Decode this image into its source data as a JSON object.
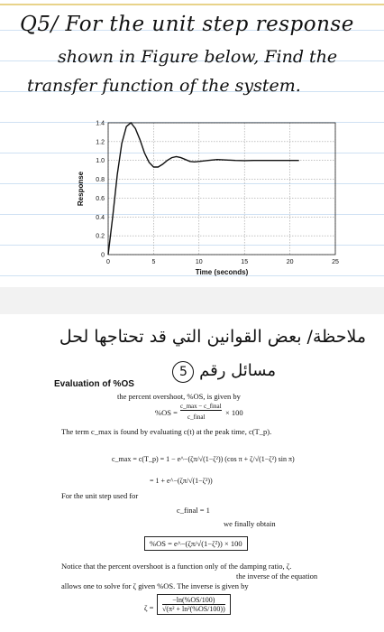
{
  "question": {
    "line1": "Q5/ For the unit step response",
    "line2": "shown in Figure below, Find the",
    "line3": "transfer function of the system."
  },
  "chart_data": {
    "type": "line",
    "xlabel": "Time (seconds)",
    "ylabel": "Response",
    "xlim": [
      0,
      25
    ],
    "ylim": [
      0,
      1.4
    ],
    "xticks": [
      0,
      5,
      10,
      15,
      20,
      25
    ],
    "yticks": [
      0,
      0.2,
      0.4,
      0.6,
      0.8,
      1.0,
      1.2,
      1.4
    ],
    "xtick_labels": [
      "0",
      "5",
      "10",
      "15",
      "20",
      "25"
    ],
    "ytick_labels": [
      "0",
      "0.2",
      "0.4",
      "0.6",
      "0.8",
      "1.0",
      "1.2",
      "1.4"
    ],
    "grid": true,
    "series": [
      {
        "x": [
          0,
          0.5,
          1,
          1.5,
          2,
          2.5,
          3,
          3.5,
          4,
          4.5,
          5,
          5.5,
          6,
          6.5,
          7,
          7.5,
          8,
          8.5,
          9,
          9.5,
          10,
          11,
          12,
          13,
          14,
          15,
          16,
          17,
          18,
          19,
          20,
          21
        ],
        "y": [
          0,
          0.4,
          0.85,
          1.18,
          1.36,
          1.4,
          1.34,
          1.22,
          1.08,
          0.98,
          0.93,
          0.93,
          0.96,
          1.0,
          1.03,
          1.04,
          1.03,
          1.01,
          0.99,
          0.985,
          0.99,
          1.0,
          1.01,
          1.005,
          1.0,
          0.998,
          1.0,
          1.0,
          1.0,
          1.0,
          1.0,
          1.0
        ]
      }
    ]
  },
  "note": {
    "arabic_line1": "ملاحظة/ بعض القوانين التي قد تحتاجها لحل",
    "arabic_line2": "مسائل رقم",
    "circle_number": "5"
  },
  "textbook": {
    "heading": "Evaluation of %OS",
    "intro": "the percent overshoot, %OS, is given by",
    "eq1_lhs": "%OS =",
    "eq1_num": "c_max − c_final",
    "eq1_den": "c_final",
    "eq1_tail": "× 100",
    "term_line": "The term c_max is found by evaluating c(t) at the peak time, c(T_p).",
    "eq2_line1": "c_max = c(T_p) = 1 − e^−(ζπ/√(1−ζ²)) (cos π + ζ/√(1−ζ²) sin π)",
    "eq2_line2": "= 1 + e^−(ζπ/√(1−ζ²))",
    "unit_step_line": "For the unit step used for",
    "cfinal_eq": "c_final = 1",
    "finally_obtain": "we finally obtain",
    "os_boxed": "%OS = e^−(ζπ/√(1−ζ²)) × 100",
    "notice_line1": "Notice that the percent overshoot is a function only of the damping ratio, ζ.",
    "notice_line2": "the inverse of the equation",
    "notice_line3": "allows one to solve for ζ given %OS. The inverse is given by",
    "zeta_lhs": "ζ =",
    "zeta_num": "−ln(%OS/100)",
    "zeta_den": "√(π² + ln²(%OS/100))"
  }
}
